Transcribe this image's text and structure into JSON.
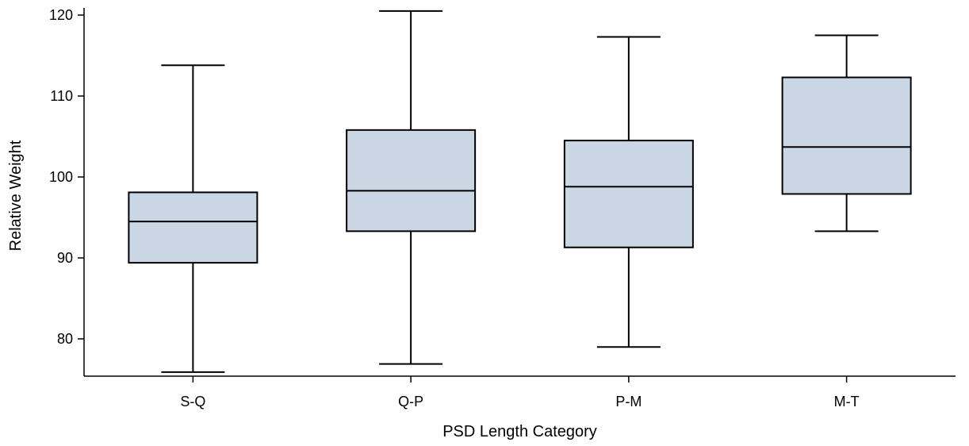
{
  "chart_data": {
    "type": "box",
    "title": "",
    "xlabel": "PSD Length Category",
    "ylabel": "Relative Weight",
    "ylim": [
      75.5,
      121.5
    ],
    "yticks": [
      80,
      90,
      100,
      110,
      120
    ],
    "grid": false,
    "legend": "none",
    "box_fill": "#cbd6e5",
    "categories": [
      "S-Q",
      "Q-P",
      "P-M",
      "M-T"
    ],
    "boxes": [
      {
        "category": "S-Q",
        "whisker_low": 75.9,
        "q1": 89.4,
        "median": 94.5,
        "q3": 98.1,
        "whisker_high": 113.8
      },
      {
        "category": "Q-P",
        "whisker_low": 76.9,
        "q1": 93.3,
        "median": 98.3,
        "q3": 105.8,
        "whisker_high": 120.5
      },
      {
        "category": "P-M",
        "whisker_low": 79.0,
        "q1": 91.3,
        "median": 98.8,
        "q3": 104.5,
        "whisker_high": 117.3
      },
      {
        "category": "M-T",
        "whisker_low": 93.3,
        "q1": 97.9,
        "median": 103.7,
        "q3": 112.3,
        "whisker_high": 117.5
      }
    ]
  }
}
